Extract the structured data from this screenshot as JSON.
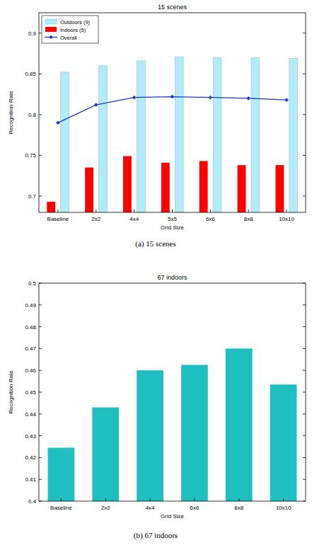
{
  "chart_data": [
    {
      "type": "bar",
      "title": "15 scenes",
      "caption": "(a)  15 scenes",
      "x_label": "Grid Size",
      "y_label": "Recognition Rate",
      "categories": [
        "Baseline",
        "2x2",
        "4x4",
        "5x5",
        "6x6",
        "8x8",
        "10x10"
      ],
      "series": [
        {
          "name": "Outdoors (9)",
          "type": "bar",
          "color": "#b3ebf7",
          "values": [
            0.852,
            0.86,
            0.866,
            0.871,
            0.87,
            0.87,
            0.869
          ]
        },
        {
          "name": "Indoors (5)",
          "type": "bar",
          "color": "#ff0000",
          "values": [
            0.693,
            0.735,
            0.749,
            0.741,
            0.743,
            0.738,
            0.738
          ]
        },
        {
          "name": "Overall",
          "type": "line",
          "color": "#1a3cc8",
          "marker": "diamond",
          "values": [
            0.79,
            0.812,
            0.821,
            0.822,
            0.821,
            0.82,
            0.818
          ]
        }
      ],
      "ylim": [
        0.68,
        0.925
      ],
      "yticks": [
        0.7,
        0.75,
        0.8,
        0.85,
        0.9
      ],
      "grid": false,
      "legend": "upper left"
    },
    {
      "type": "bar",
      "title": "67 indoors",
      "caption": "(b)  67 indoors",
      "x_label": "Grid Size",
      "y_label": "Recognition Rate",
      "categories": [
        "Baseline",
        "2x2",
        "4x4",
        "6x6",
        "8x8",
        "10x10"
      ],
      "values": [
        0.4245,
        0.443,
        0.46,
        0.4625,
        0.47,
        0.4535
      ],
      "color": "#1fbfbf",
      "ylim": [
        0.4,
        0.5
      ],
      "yticks": [
        0.4,
        0.41,
        0.42,
        0.43,
        0.44,
        0.45,
        0.46,
        0.47,
        0.48,
        0.49,
        0.5
      ],
      "grid": false
    }
  ]
}
